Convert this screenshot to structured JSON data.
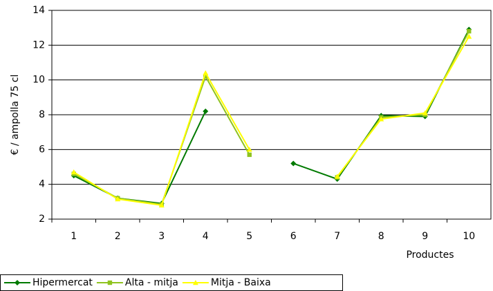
{
  "chart_data": {
    "type": "line",
    "y_label": "€ / ampolla 75 cl",
    "x_label": "Productes",
    "categories": [
      "1",
      "2",
      "3",
      "4",
      "5",
      "6",
      "7",
      "8",
      "9",
      "10"
    ],
    "series": [
      {
        "name": "Hipermercat",
        "color": "#007a00",
        "marker": "diamond",
        "values": [
          4.5,
          3.2,
          2.9,
          8.2,
          null,
          5.2,
          4.3,
          7.95,
          7.9,
          12.9
        ]
      },
      {
        "name": "Alta - mitja",
        "color": "#8fc31f",
        "marker": "square",
        "values": [
          4.6,
          3.2,
          2.85,
          10.2,
          5.7,
          null,
          4.4,
          7.85,
          8.0,
          12.8
        ]
      },
      {
        "name": "Mitja - Baixa",
        "color": "#ffff00",
        "marker": "triangle",
        "values": [
          4.7,
          3.15,
          2.8,
          10.4,
          6.0,
          null,
          4.45,
          7.75,
          8.1,
          12.5
        ]
      }
    ],
    "ylim": [
      2,
      14
    ],
    "yticks": [
      2,
      4,
      6,
      8,
      10,
      12,
      14
    ],
    "grid": true,
    "legend": "bottom"
  }
}
